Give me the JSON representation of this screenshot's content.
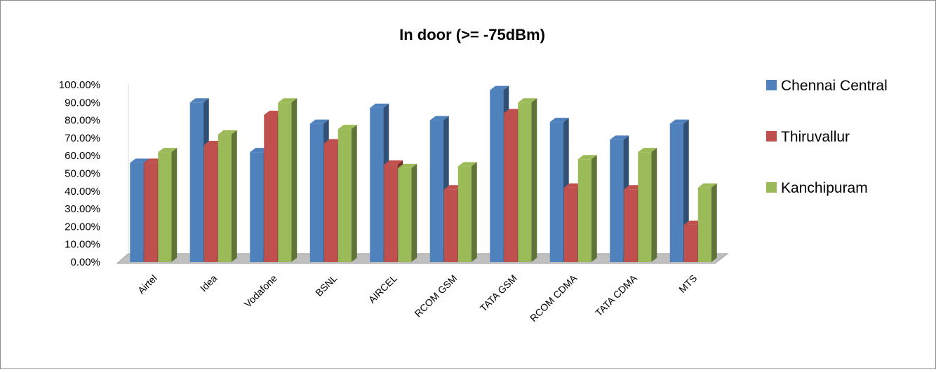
{
  "chart_data": {
    "type": "bar",
    "title": "In door (>= -75dBm)",
    "xlabel": "",
    "ylabel": "",
    "ylim": [
      0,
      1
    ],
    "grid": false,
    "legend_position": "right",
    "y_ticks": [
      "0.00%",
      "10.00%",
      "20.00%",
      "30.00%",
      "40.00%",
      "50.00%",
      "60.00%",
      "70.00%",
      "80.00%",
      "90.00%",
      "100.00%"
    ],
    "categories": [
      "Airtel",
      "Idea",
      "Vodafone",
      "BSNL",
      "AIRCEL",
      "RCOM GSM",
      "TATA  GSM",
      "RCOM CDMA",
      "TATA CDMA",
      "MTS"
    ],
    "series": [
      {
        "name": "Chennai Central",
        "color": "#4f81bd",
        "values": [
          0.56,
          0.9,
          0.62,
          0.78,
          0.87,
          0.8,
          0.97,
          0.79,
          0.69,
          0.78
        ]
      },
      {
        "name": "Thiruvallur",
        "color": "#c0504d",
        "values": [
          0.56,
          0.66,
          0.83,
          0.67,
          0.55,
          0.41,
          0.84,
          0.42,
          0.41,
          0.21
        ]
      },
      {
        "name": "Kanchipuram",
        "color": "#9bbb59",
        "values": [
          0.62,
          0.72,
          0.9,
          0.75,
          0.53,
          0.54,
          0.9,
          0.58,
          0.62,
          0.42
        ]
      }
    ]
  }
}
